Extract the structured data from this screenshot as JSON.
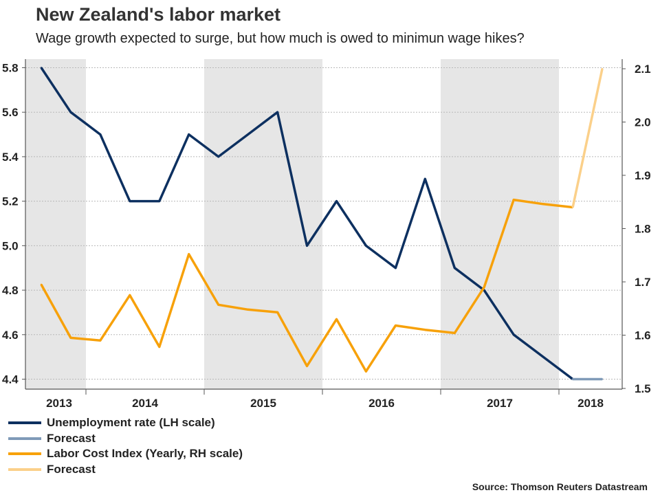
{
  "header": {
    "title": "New Zealand's labor market",
    "subtitle": "Wage growth expected to surge, but how much is owed to minimun wage hikes?"
  },
  "source": "Source: Thomson Reuters Datastream",
  "colors": {
    "unemployment": "#0d3060",
    "unemployment_forecast": "#7f9ab8",
    "lci": "#f7a10a",
    "lci_forecast": "#fbd08a",
    "shade": "#e6e6e6",
    "grid": "#b8b8b8",
    "axis": "#555555"
  },
  "chart_data": {
    "type": "line",
    "title": "New Zealand's labor market",
    "x_ticks": [
      "2013",
      "2014",
      "2015",
      "2016",
      "2017",
      "2018"
    ],
    "shaded_years": [
      "2013",
      "2015",
      "2017"
    ],
    "left_axis": {
      "label": "Unemployment rate (LH scale)",
      "ylim": [
        4.4,
        5.8
      ],
      "ticks": [
        "4.4",
        "4.6",
        "4.8",
        "5.0",
        "5.2",
        "5.4",
        "5.6",
        "5.8"
      ]
    },
    "right_axis": {
      "label": "Labor Cost Index (Yearly, RH scale)",
      "ylim": [
        1.5,
        2.1
      ],
      "ticks": [
        "1.5",
        "1.6",
        "1.7",
        "1.8",
        "1.9",
        "2.0",
        "2.1"
      ]
    },
    "series": [
      {
        "name": "Unemployment rate (LH scale)",
        "axis": "left",
        "color_key": "unemployment",
        "points": [
          [
            2013.0,
            5.8
          ],
          [
            2013.25,
            5.6
          ],
          [
            2013.5,
            5.5
          ],
          [
            2013.75,
            5.2
          ],
          [
            2014.0,
            5.2
          ],
          [
            2014.25,
            5.5
          ],
          [
            2014.5,
            5.4
          ],
          [
            2014.75,
            5.5
          ],
          [
            2015.0,
            5.6
          ],
          [
            2015.25,
            5.0
          ],
          [
            2015.5,
            5.2
          ],
          [
            2015.75,
            5.0
          ],
          [
            2016.0,
            4.9
          ],
          [
            2016.25,
            5.3
          ],
          [
            2016.5,
            4.9
          ],
          [
            2016.75,
            4.8
          ],
          [
            2017.0,
            4.6
          ],
          [
            2017.25,
            4.5
          ],
          [
            2017.5,
            4.4
          ]
        ]
      },
      {
        "name": "Forecast",
        "axis": "left",
        "color_key": "unemployment_forecast",
        "points": [
          [
            2017.5,
            4.4
          ],
          [
            2017.75,
            4.4
          ]
        ]
      },
      {
        "name": "Labor Cost Index (Yearly, RH scale)",
        "axis": "right",
        "color_key": "lci",
        "points": [
          [
            2013.0,
            1.695
          ],
          [
            2013.25,
            1.595
          ],
          [
            2013.5,
            1.59
          ],
          [
            2013.75,
            1.675
          ],
          [
            2014.0,
            1.578
          ],
          [
            2014.25,
            1.752
          ],
          [
            2014.5,
            1.657
          ],
          [
            2014.75,
            1.648
          ],
          [
            2015.0,
            1.643
          ],
          [
            2015.25,
            1.542
          ],
          [
            2015.5,
            1.63
          ],
          [
            2015.75,
            1.532
          ],
          [
            2016.0,
            1.618
          ],
          [
            2016.25,
            1.61
          ],
          [
            2016.5,
            1.604
          ],
          [
            2016.75,
            1.69
          ],
          [
            2017.0,
            1.854
          ],
          [
            2017.25,
            1.846
          ],
          [
            2017.5,
            1.84
          ]
        ]
      },
      {
        "name": "Forecast",
        "axis": "right",
        "color_key": "lci_forecast",
        "points": [
          [
            2017.5,
            1.84
          ],
          [
            2017.75,
            2.1
          ]
        ]
      }
    ],
    "legend_position": "bottom-left"
  }
}
